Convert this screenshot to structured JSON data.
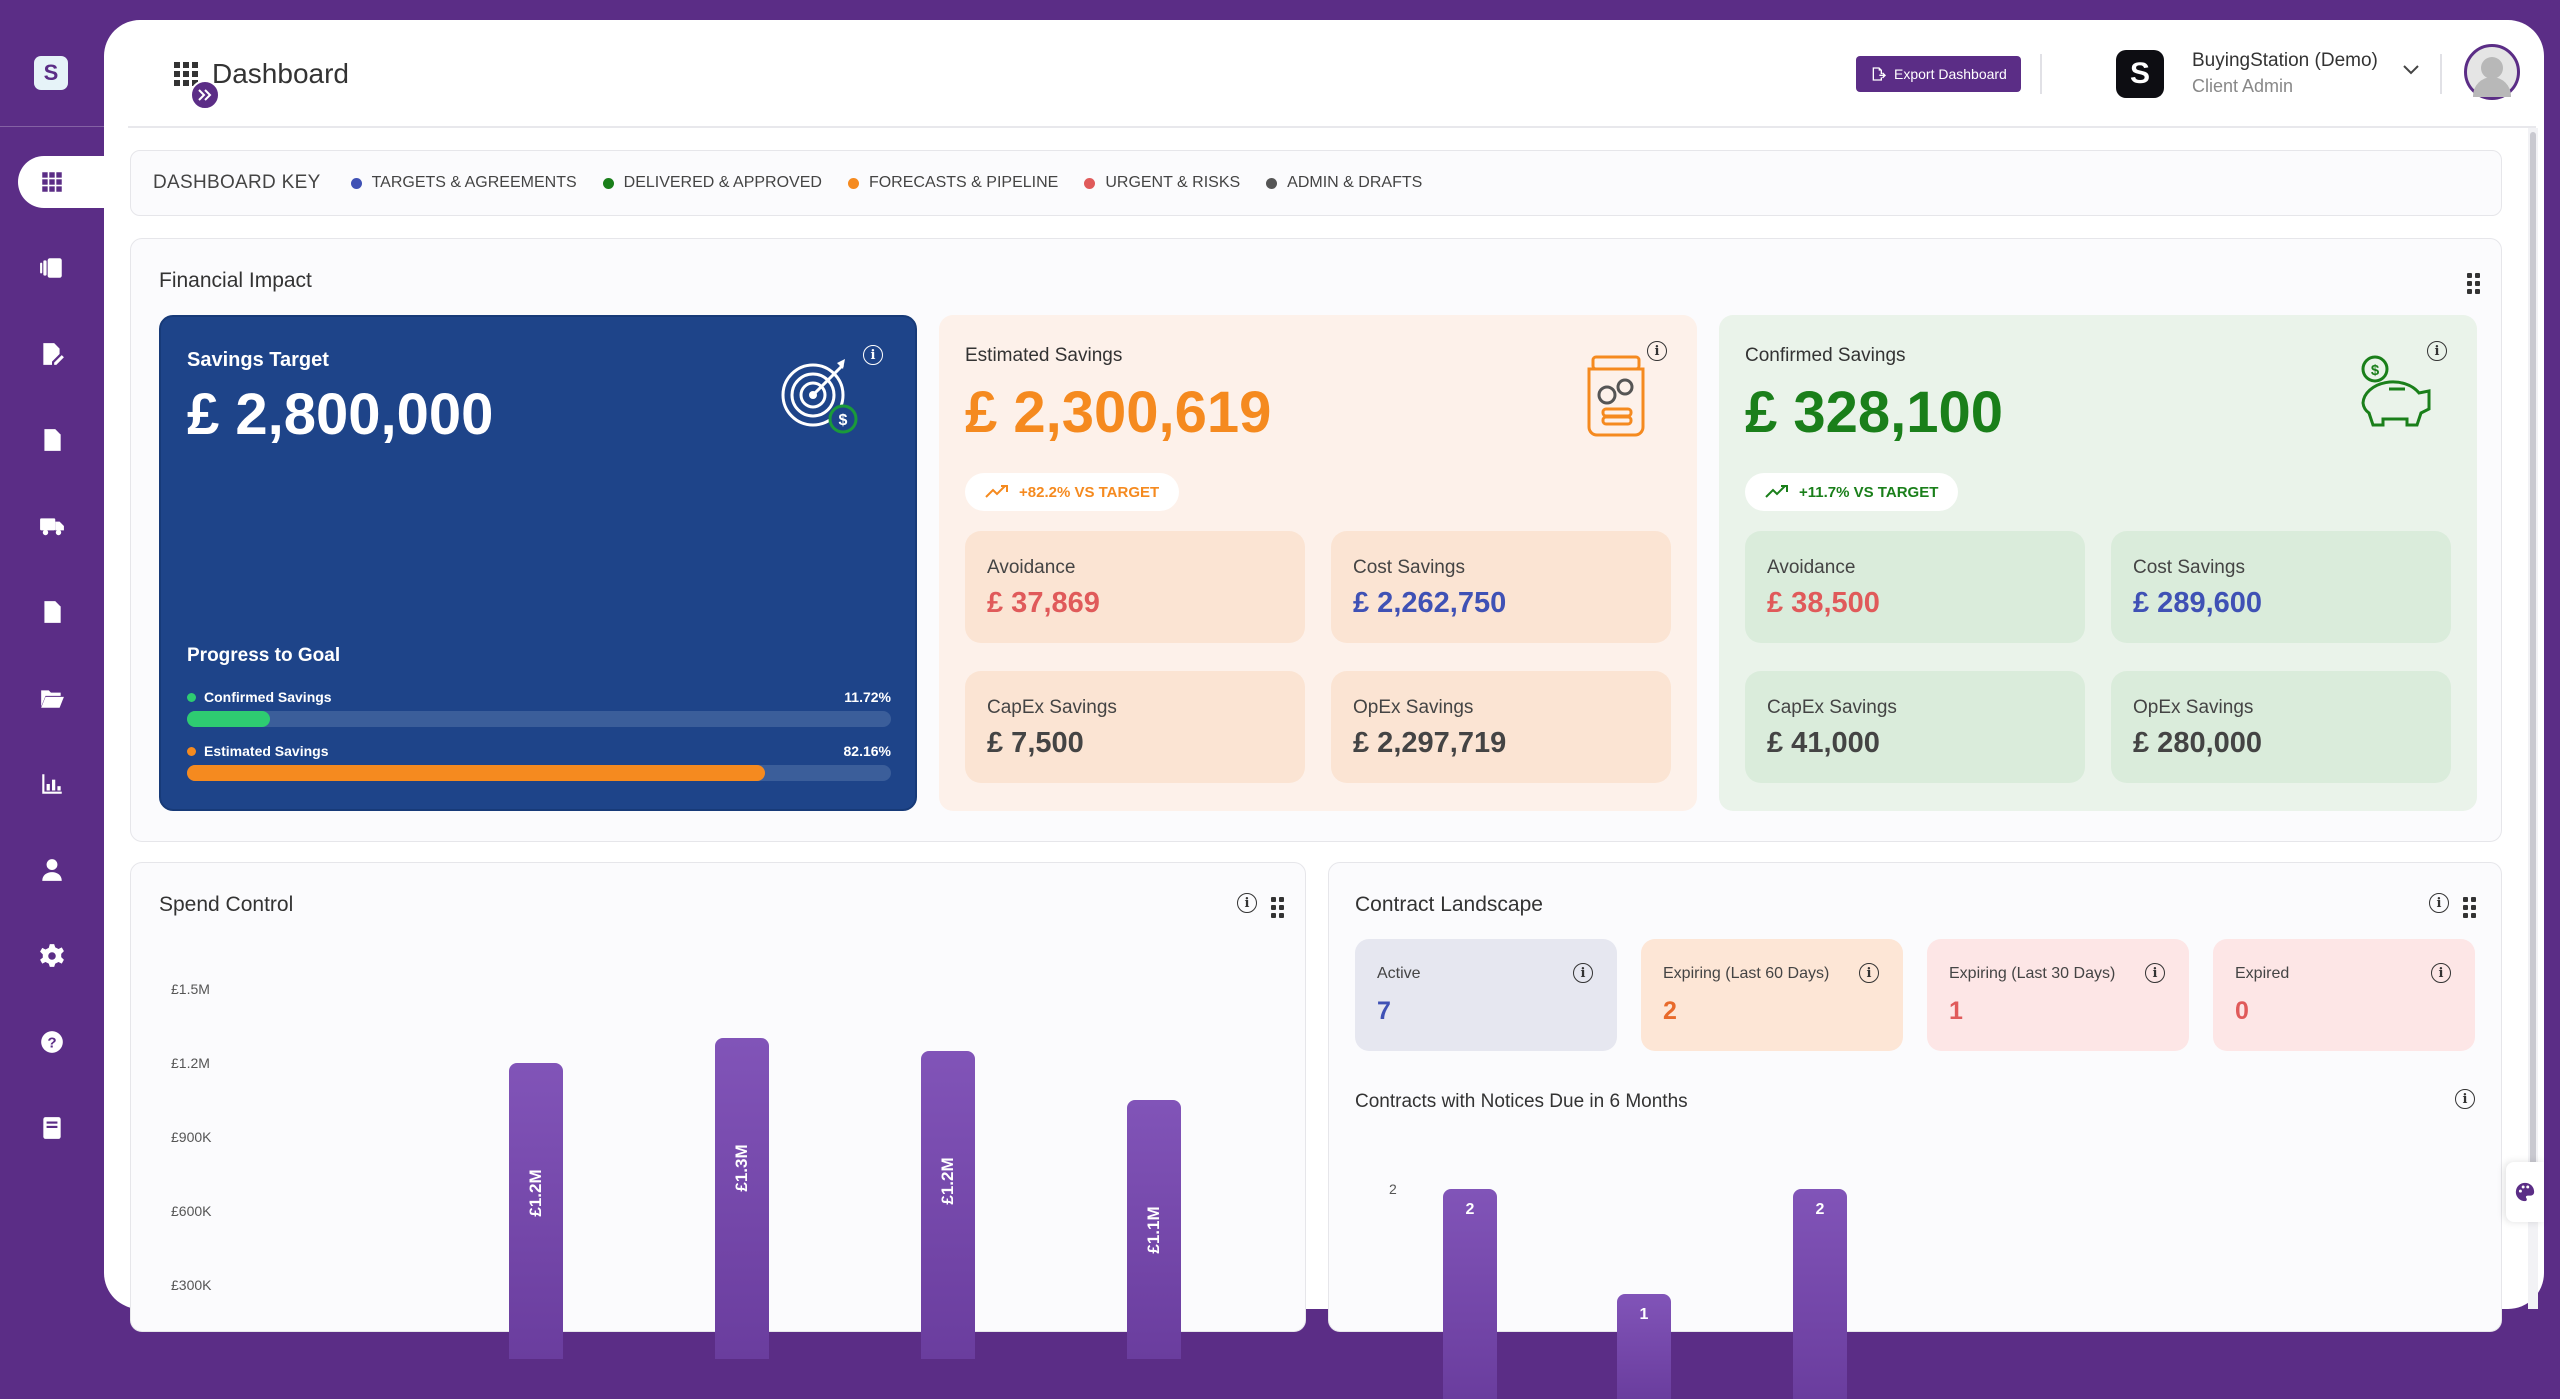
{
  "app": {
    "page_title": "Dashboard",
    "export_label": "Export Dashboard",
    "org_logo_text": "S",
    "org_name": "BuyingStation (Demo)",
    "org_role": "Client Admin"
  },
  "sidebar": {
    "logo_text": "S",
    "items": [
      {
        "icon": "dashboard-grid-icon",
        "active": true
      },
      {
        "icon": "documents-stack-icon"
      },
      {
        "icon": "edit-document-icon"
      },
      {
        "icon": "document-icon"
      },
      {
        "icon": "delivery-truck-icon"
      },
      {
        "icon": "report-file-icon"
      },
      {
        "icon": "folder-open-icon"
      },
      {
        "icon": "bar-chart-icon"
      },
      {
        "icon": "user-icon"
      },
      {
        "icon": "gear-icon"
      },
      {
        "icon": "help-icon"
      },
      {
        "icon": "book-icon"
      }
    ]
  },
  "dashboard_key": {
    "title": "DASHBOARD KEY",
    "items": [
      {
        "label": "TARGETS & AGREEMENTS",
        "color": "#3f51b5"
      },
      {
        "label": "DELIVERED & APPROVED",
        "color": "#1a7f1a"
      },
      {
        "label": "FORECASTS & PIPELINE",
        "color": "#f58a1f"
      },
      {
        "label": "URGENT & RISKS",
        "color": "#e05a5a"
      },
      {
        "label": "ADMIN & DRAFTS",
        "color": "#555555"
      }
    ]
  },
  "financial_impact": {
    "title": "Financial Impact",
    "savings_target": {
      "label": "Savings Target",
      "value": "£ 2,800,000",
      "progress_title": "Progress to Goal",
      "confirmed_label": "Confirmed Savings",
      "confirmed_pct": "11.72%",
      "confirmed_fraction": 0.1172,
      "estimated_label": "Estimated Savings",
      "estimated_pct": "82.16%",
      "estimated_fraction": 0.8216
    },
    "estimated": {
      "label": "Estimated Savings",
      "value": "£ 2,300,619",
      "badge": "+82.2% VS TARGET",
      "avoidance_label": "Avoidance",
      "avoidance_value": "£ 37,869",
      "cost_label": "Cost Savings",
      "cost_value": "£ 2,262,750",
      "capex_label": "CapEx Savings",
      "capex_value": "£ 7,500",
      "opex_label": "OpEx Savings",
      "opex_value": "£ 2,297,719"
    },
    "confirmed": {
      "label": "Confirmed Savings",
      "value": "£ 328,100",
      "badge": "+11.7% VS TARGET",
      "avoidance_label": "Avoidance",
      "avoidance_value": "£ 38,500",
      "cost_label": "Cost Savings",
      "cost_value": "£ 289,600",
      "capex_label": "CapEx Savings",
      "capex_value": "£ 41,000",
      "opex_label": "OpEx Savings",
      "opex_value": "£ 280,000"
    }
  },
  "spend_control": {
    "title": "Spend Control",
    "y_ticks": [
      "£1.5M",
      "£1.2M",
      "£900K",
      "£600K",
      "£300K"
    ],
    "bars": [
      {
        "label": "£1.2M",
        "value": 1.2
      },
      {
        "label": "£1.3M",
        "value": 1.3
      },
      {
        "label": "£1.2M",
        "value": 1.25
      },
      {
        "label": "£1.1M",
        "value": 1.05
      }
    ]
  },
  "contract_landscape": {
    "title": "Contract Landscape",
    "tiles": [
      {
        "label": "Active",
        "value": "7",
        "bg": "#e6e7f0",
        "color": "#3f51b5"
      },
      {
        "label": "Expiring (Last 60 Days)",
        "value": "2",
        "bg": "#fde6d6",
        "color": "#e86a2b"
      },
      {
        "label": "Expiring (Last 30 Days)",
        "value": "1",
        "bg": "#fde6e6",
        "color": "#e05a5a"
      },
      {
        "label": "Expired",
        "value": "0",
        "bg": "#fde6e6",
        "color": "#e05a5a"
      }
    ],
    "notices_title": "Contracts with Notices Due in 6 Months",
    "notices_y_tick": "2",
    "chart_data": {
      "type": "bar",
      "values": [
        2,
        1,
        2
      ],
      "labels": [
        "2",
        "1",
        "2"
      ]
    }
  }
}
